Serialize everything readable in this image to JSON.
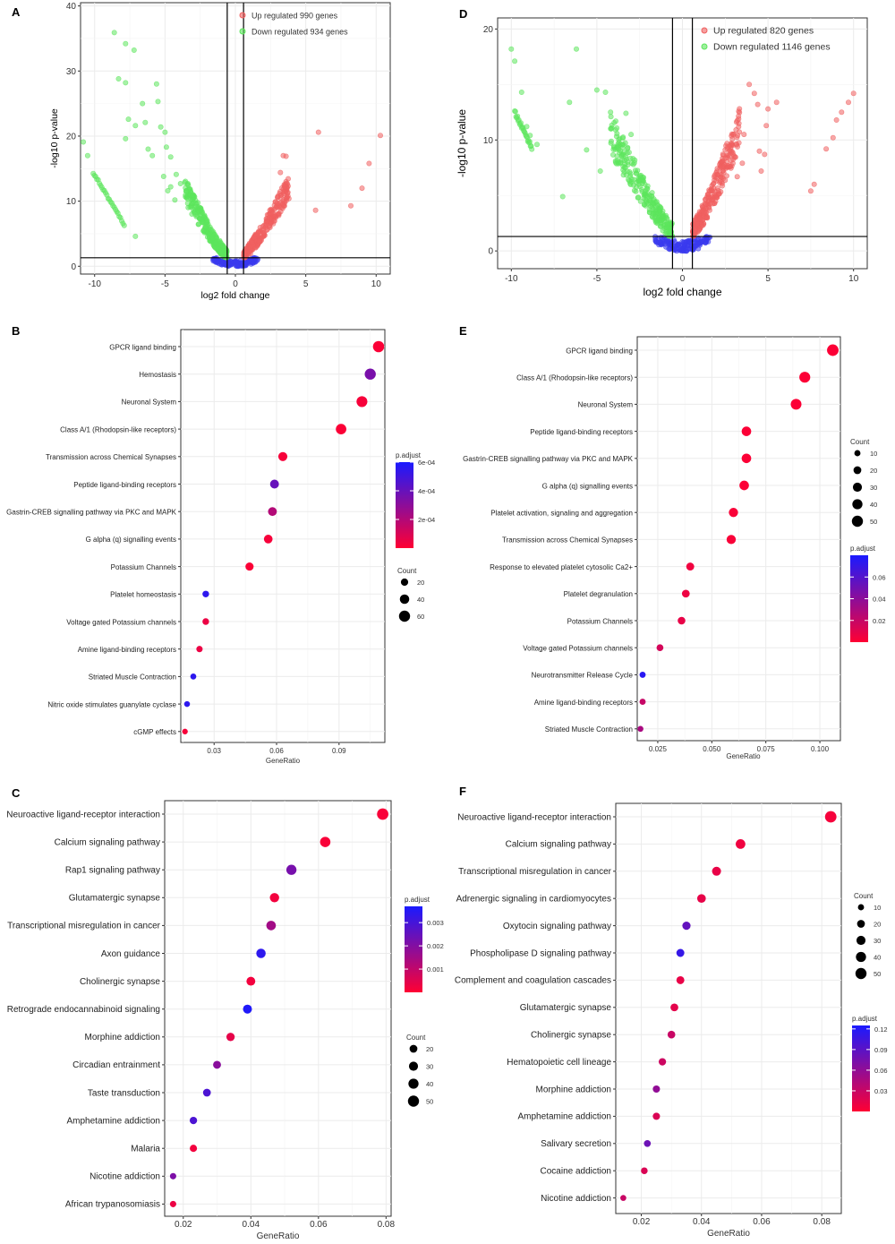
{
  "chart_data": [
    {
      "panel": "A",
      "type": "scatter",
      "subtype": "volcano",
      "xlabel": "log2 fold change",
      "ylabel": "-log10 p-value",
      "xlim": [
        -11,
        11
      ],
      "ylim": [
        -1.2,
        40.5
      ],
      "x_ticks": [
        -10,
        -5,
        0,
        5,
        10
      ],
      "y_ticks": [
        0,
        10,
        20,
        30,
        40
      ],
      "thresholds": {
        "x": [
          -0.58,
          0.58
        ],
        "y": 1.3
      },
      "legend": [
        "Up regulated 990 genes",
        "Down regulated 934 genes"
      ],
      "legend_position": "top-right",
      "colors": {
        "up": "#f06060",
        "down": "#5ce65c",
        "ns": "#3a3aee"
      },
      "up_points": [
        [
          10.3,
          20.1
        ],
        [
          5.9,
          20.6
        ],
        [
          9.5,
          15.8
        ],
        [
          9.0,
          12.0
        ],
        [
          8.2,
          9.3
        ],
        [
          5.7,
          8.6
        ],
        [
          3.6,
          16.9
        ],
        [
          3.4,
          17.0
        ],
        [
          3.2,
          14.4
        ],
        [
          3.5,
          12.2
        ],
        [
          3.0,
          10.6
        ],
        [
          3.8,
          10.4
        ],
        [
          3.1,
          8.1
        ]
      ],
      "down_points": [
        [
          -10.8,
          19.1
        ],
        [
          -10.5,
          17.0
        ],
        [
          -8.6,
          35.9
        ],
        [
          -7.8,
          34.2
        ],
        [
          -7.2,
          33.2
        ],
        [
          -8.3,
          28.8
        ],
        [
          -7.8,
          28.2
        ],
        [
          -5.6,
          28.0
        ],
        [
          -5.5,
          25.3
        ],
        [
          -6.6,
          25.0
        ],
        [
          -7.6,
          22.6
        ],
        [
          -7.1,
          21.6
        ],
        [
          -6.4,
          22.1
        ],
        [
          -5.3,
          21.4
        ],
        [
          -5.0,
          20.6
        ],
        [
          -4.9,
          18.3
        ],
        [
          -6.2,
          18.0
        ],
        [
          -5.9,
          17.0
        ],
        [
          -4.6,
          16.8
        ],
        [
          -7.8,
          19.6
        ],
        [
          -7.1,
          4.6
        ],
        [
          -5.1,
          13.8
        ],
        [
          -4.8,
          11.6
        ],
        [
          -4.2,
          14.1
        ],
        [
          -4.6,
          12.2
        ],
        [
          -3.9,
          12.7
        ],
        [
          -4.3,
          10.2
        ],
        [
          -3.5,
          11.6
        ]
      ],
      "down_arc": {
        "x0": -10.1,
        "y0": 14.4,
        "x1": -7.9,
        "y1": 6.4
      },
      "up_band": {
        "x_end": 3.8,
        "y_end": 11.0
      },
      "down_band": {
        "x_end": -3.6,
        "y_end": 10.5
      }
    },
    {
      "panel": "D",
      "type": "scatter",
      "subtype": "volcano",
      "xlabel": "log2 fold change",
      "ylabel": "-log10 p-value",
      "xlim": [
        -10.8,
        10.8
      ],
      "ylim": [
        -1.6,
        21
      ],
      "x_ticks": [
        -10,
        -5,
        0,
        5,
        10
      ],
      "y_ticks": [
        0,
        10,
        20
      ],
      "thresholds": {
        "x": [
          -0.58,
          0.58
        ],
        "y": 1.3
      },
      "legend": [
        "Up regulated 820 genes",
        "Down regulated 1146 genes"
      ],
      "legend_position": "top-right",
      "colors": {
        "up": "#f06060",
        "down": "#5ce65c",
        "ns": "#3a3aee"
      },
      "up_points": [
        [
          10.0,
          14.2
        ],
        [
          9.7,
          13.4
        ],
        [
          9.3,
          12.5
        ],
        [
          9.0,
          11.8
        ],
        [
          8.8,
          10.2
        ],
        [
          8.4,
          9.2
        ],
        [
          7.5,
          5.4
        ],
        [
          7.7,
          6.0
        ],
        [
          5.5,
          13.4
        ],
        [
          5.0,
          12.8
        ],
        [
          4.9,
          11.3
        ],
        [
          4.4,
          13.2
        ],
        [
          4.2,
          14.2
        ],
        [
          3.9,
          15.0
        ],
        [
          4.5,
          9.0
        ],
        [
          4.8,
          8.7
        ],
        [
          4.6,
          7.2
        ],
        [
          3.6,
          10.5
        ],
        [
          3.5,
          7.9
        ],
        [
          3.2,
          6.7
        ]
      ],
      "down_points": [
        [
          -10.0,
          18.2
        ],
        [
          -9.8,
          17.1
        ],
        [
          -9.4,
          14.3
        ],
        [
          -9.1,
          11.2
        ],
        [
          -8.9,
          10.4
        ],
        [
          -8.5,
          9.6
        ],
        [
          -6.2,
          18.2
        ],
        [
          -6.6,
          13.4
        ],
        [
          -7.0,
          4.9
        ],
        [
          -5.0,
          14.5
        ],
        [
          -4.5,
          14.3
        ],
        [
          -4.2,
          12.5
        ],
        [
          -3.9,
          10.9
        ],
        [
          -5.6,
          9.1
        ],
        [
          -3.3,
          12.4
        ],
        [
          -3.0,
          10.5
        ],
        [
          -4.8,
          7.2
        ]
      ],
      "down_arc": {
        "x0": -9.8,
        "y0": 12.5,
        "x1": -8.8,
        "y1": 9.3
      },
      "up_band": {
        "x_end": 3.4,
        "y_end": 10.0
      },
      "down_band": {
        "x_end": -4.2,
        "y_end": 9.5
      }
    },
    {
      "panel": "B",
      "type": "scatter",
      "subtype": "dotplot",
      "xlabel": "GeneRatio",
      "xlim": [
        0.014,
        0.112
      ],
      "x_ticks": [
        0.03,
        0.06,
        0.09
      ],
      "x_tick_labels": [
        "0.03",
        "0.06",
        "0.09"
      ],
      "terms": [
        "GPCR ligand binding",
        "Hemostasis",
        "Neuronal System",
        "Class A/1 (Rhodopsin-like receptors)",
        "Transmission across Chemical Synapses",
        "Peptide ligand-binding receptors",
        "Gastrin-CREB signalling pathway via PKC and MAPK",
        "G alpha (q) signalling events",
        "Potassium Channels",
        "Platelet homeostasis",
        "Voltage gated Potassium channels",
        "Amine ligand-binding receptors",
        "Striated Muscle Contraction",
        "Nitric oxide stimulates guanylate cyclase",
        "cGMP effects"
      ],
      "gene_ratio": [
        0.109,
        0.105,
        0.101,
        0.091,
        0.063,
        0.059,
        0.058,
        0.056,
        0.047,
        0.026,
        0.026,
        0.023,
        0.02,
        0.017,
        0.016
      ],
      "count": [
        62,
        60,
        57,
        52,
        36,
        34,
        33,
        32,
        27,
        15,
        15,
        13,
        11,
        10,
        9
      ],
      "p_adjust": [
        1e-05,
        0.00035,
        2e-05,
        1e-05,
        2e-05,
        0.0004,
        0.0002,
        2e-05,
        1e-05,
        0.00055,
        5e-05,
        5e-05,
        0.00055,
        0.00055,
        2e-05
      ],
      "color_legend": {
        "title": "p.adjust",
        "min": 0,
        "max": 0.0006,
        "ticks": [
          0.0002,
          0.0004,
          0.0006
        ],
        "tick_labels": [
          "2e-04",
          "4e-04",
          "6e-04"
        ]
      },
      "size_legend": {
        "title": "Count",
        "values": [
          20,
          40,
          60
        ],
        "labels": [
          "20",
          "40",
          "60"
        ]
      },
      "color_low": "#ff0033",
      "color_high": "#1a1aff"
    },
    {
      "panel": "E",
      "type": "scatter",
      "subtype": "dotplot",
      "xlabel": "GeneRatio",
      "xlim": [
        0.0155,
        0.1095
      ],
      "x_ticks": [
        0.025,
        0.05,
        0.075,
        0.1
      ],
      "x_tick_labels": [
        "0.025",
        "0.050",
        "0.075",
        "0.100"
      ],
      "terms": [
        "GPCR ligand binding",
        "Class A/1 (Rhodopsin-like receptors)",
        "Neuronal System",
        "Peptide ligand-binding receptors",
        "Gastrin-CREB signalling pathway via PKC and MAPK",
        "G alpha (q) signalling events",
        "Platelet activation, signaling and aggregation",
        "Transmission across Chemical Synapses",
        "Response to elevated platelet cytosolic Ca2+",
        "Platelet degranulation",
        "Potassium Channels",
        "Voltage gated Potassium channels",
        "Neurotransmitter Release Cycle",
        "Amine ligand-binding receptors",
        "Striated Muscle Contraction"
      ],
      "gene_ratio": [
        0.106,
        0.093,
        0.089,
        0.066,
        0.066,
        0.065,
        0.06,
        0.059,
        0.04,
        0.038,
        0.036,
        0.026,
        0.018,
        0.018,
        0.017
      ],
      "count": [
        55,
        48,
        46,
        34,
        34,
        34,
        31,
        31,
        21,
        20,
        19,
        14,
        10,
        10,
        9
      ],
      "p_adjust": [
        0.001,
        0.001,
        0.001,
        0.001,
        0.001,
        0.001,
        0.002,
        0.002,
        0.005,
        0.006,
        0.008,
        0.015,
        0.075,
        0.02,
        0.03
      ],
      "color_legend": {
        "title": "p.adjust",
        "min": 0,
        "max": 0.08,
        "ticks": [
          0.02,
          0.04,
          0.06
        ],
        "tick_labels": [
          "0.02",
          "0.04",
          "0.06"
        ]
      },
      "size_legend": {
        "title": "Count",
        "values": [
          10,
          20,
          30,
          40,
          50
        ],
        "labels": [
          "10",
          "20",
          "30",
          "40",
          "50"
        ]
      },
      "color_low": "#ff0033",
      "color_high": "#1a1aff"
    },
    {
      "panel": "C",
      "type": "scatter",
      "subtype": "dotplot",
      "xlabel": "GeneRatio",
      "xlim": [
        0.0145,
        0.0815
      ],
      "x_ticks": [
        0.02,
        0.04,
        0.06,
        0.08
      ],
      "x_tick_labels": [
        "0.02",
        "0.04",
        "0.06",
        "0.08"
      ],
      "terms": [
        "Neuroactive ligand-receptor interaction",
        "Calcium signaling pathway",
        "Rap1 signaling pathway",
        "Glutamatergic synapse",
        "Transcriptional misregulation in cancer",
        "Axon guidance",
        "Cholinergic synapse",
        "Retrograde endocannabinoid signaling",
        "Morphine addiction",
        "Circadian entrainment",
        "Taste transduction",
        "Amphetamine addiction",
        "Malaria",
        "Nicotine addiction",
        "African trypanosomiasis"
      ],
      "gene_ratio": [
        0.079,
        0.062,
        0.052,
        0.047,
        0.046,
        0.043,
        0.04,
        0.039,
        0.034,
        0.03,
        0.027,
        0.023,
        0.023,
        0.017,
        0.017
      ],
      "count": [
        53,
        42,
        40,
        32,
        34,
        33,
        28,
        29,
        24,
        21,
        20,
        17,
        16,
        11,
        11
      ],
      "p_adjust": [
        0.0001,
        0.0001,
        0.0022,
        0.0002,
        0.0015,
        0.0034,
        0.0002,
        0.0036,
        0.0004,
        0.0019,
        0.0029,
        0.0029,
        0.0002,
        0.0021,
        0.0003
      ],
      "color_legend": {
        "title": "p.adjust",
        "min": 0,
        "max": 0.0037,
        "ticks": [
          0.001,
          0.002,
          0.003
        ],
        "tick_labels": [
          "0.001",
          "0.002",
          "0.003"
        ]
      },
      "size_legend": {
        "title": "Count",
        "values": [
          20,
          30,
          40,
          50
        ],
        "labels": [
          "20",
          "30",
          "40",
          "50"
        ]
      },
      "color_low": "#ff0033",
      "color_high": "#1a1aff"
    },
    {
      "panel": "F",
      "type": "scatter",
      "subtype": "dotplot",
      "xlabel": "GeneRatio",
      "xlim": [
        0.0115,
        0.0865
      ],
      "x_ticks": [
        0.02,
        0.04,
        0.06,
        0.08
      ],
      "x_tick_labels": [
        "0.02",
        "0.04",
        "0.06",
        "0.08"
      ],
      "terms": [
        "Neuroactive ligand-receptor interaction",
        "Calcium signaling pathway",
        "Transcriptional misregulation in cancer",
        "Adrenergic signaling in cardiomyocytes",
        "Oxytocin signaling pathway",
        "Phospholipase D signaling pathway",
        "Complement and coagulation cascades",
        "Glutamatergic synapse",
        "Cholinergic synapse",
        "Hematopoietic cell lineage",
        "Morphine addiction",
        "Amphetamine addiction",
        "Salivary secretion",
        "Cocaine addiction",
        "Nicotine addiction"
      ],
      "gene_ratio": [
        0.083,
        0.053,
        0.045,
        0.04,
        0.035,
        0.033,
        0.033,
        0.031,
        0.03,
        0.027,
        0.025,
        0.025,
        0.022,
        0.021,
        0.014
      ],
      "count": [
        54,
        35,
        29,
        26,
        23,
        21,
        21,
        20,
        19,
        17,
        16,
        16,
        14,
        13,
        9
      ],
      "p_adjust": [
        0.005,
        0.008,
        0.012,
        0.013,
        0.085,
        0.11,
        0.012,
        0.015,
        0.03,
        0.028,
        0.06,
        0.02,
        0.08,
        0.02,
        0.03
      ],
      "color_legend": {
        "title": "p.adjust",
        "min": 0,
        "max": 0.125,
        "ticks": [
          0.03,
          0.06,
          0.09,
          0.12
        ],
        "tick_labels": [
          "0.03",
          "0.06",
          "0.09",
          "0.12"
        ]
      },
      "size_legend": {
        "title": "Count",
        "values": [
          10,
          20,
          30,
          40,
          50
        ],
        "labels": [
          "10",
          "20",
          "30",
          "40",
          "50"
        ]
      },
      "color_low": "#ff0033",
      "color_high": "#1a1aff"
    }
  ]
}
